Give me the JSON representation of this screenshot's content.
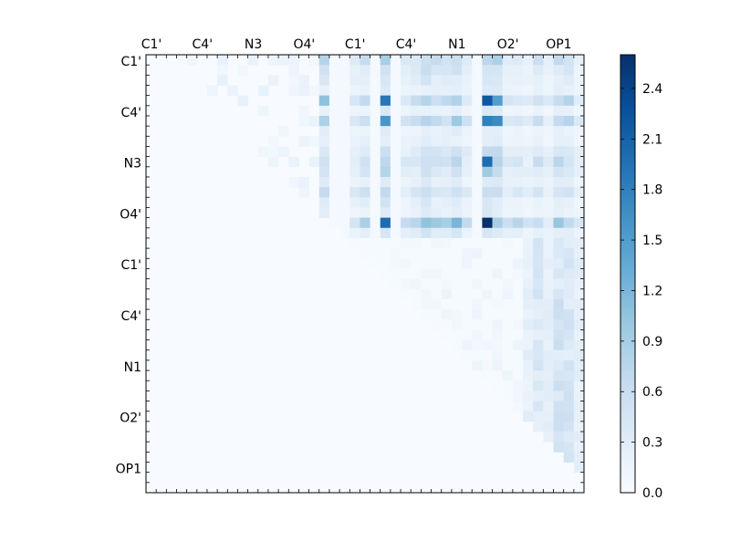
{
  "chart_data": {
    "type": "heatmap",
    "title": "",
    "xlabel": "",
    "ylabel": "",
    "x_tick_labels": [
      "C1'",
      "C4'",
      "N3",
      "O4'",
      "C1'",
      "C4'",
      "N1",
      "O2'",
      "OP1"
    ],
    "y_tick_labels": [
      "C1'",
      "C4'",
      "N3",
      "O4'",
      "C1'",
      "C4'",
      "N1",
      "O2'",
      "OP1"
    ],
    "colorbar": {
      "min": 0.0,
      "max": 2.6,
      "ticks": [
        "0.0",
        "0.3",
        "0.6",
        "0.9",
        "1.2",
        "1.5",
        "1.8",
        "2.1",
        "2.4"
      ],
      "colormap": "Blues",
      "color_stops": [
        "#f7fbff",
        "#deebf7",
        "#c6dbef",
        "#9ecae1",
        "#6baed6",
        "#4292c6",
        "#2171b5",
        "#08519c",
        "#08306b"
      ]
    },
    "grid_size": 43,
    "upper_triangle_only": true,
    "notable_values": [
      {
        "row": "O4'",
        "col": "N1",
        "value": 2.6
      },
      {
        "row": "C4'",
        "col": "N1",
        "value": 2.2
      },
      {
        "row": "N3",
        "col": "N1",
        "value": 2.0
      },
      {
        "row": "O4'",
        "col": "C1'",
        "value": 2.0
      },
      {
        "row": "C4'",
        "col": "C1'",
        "value": 1.9
      }
    ],
    "grid": false,
    "legend": "colorbar-right"
  }
}
